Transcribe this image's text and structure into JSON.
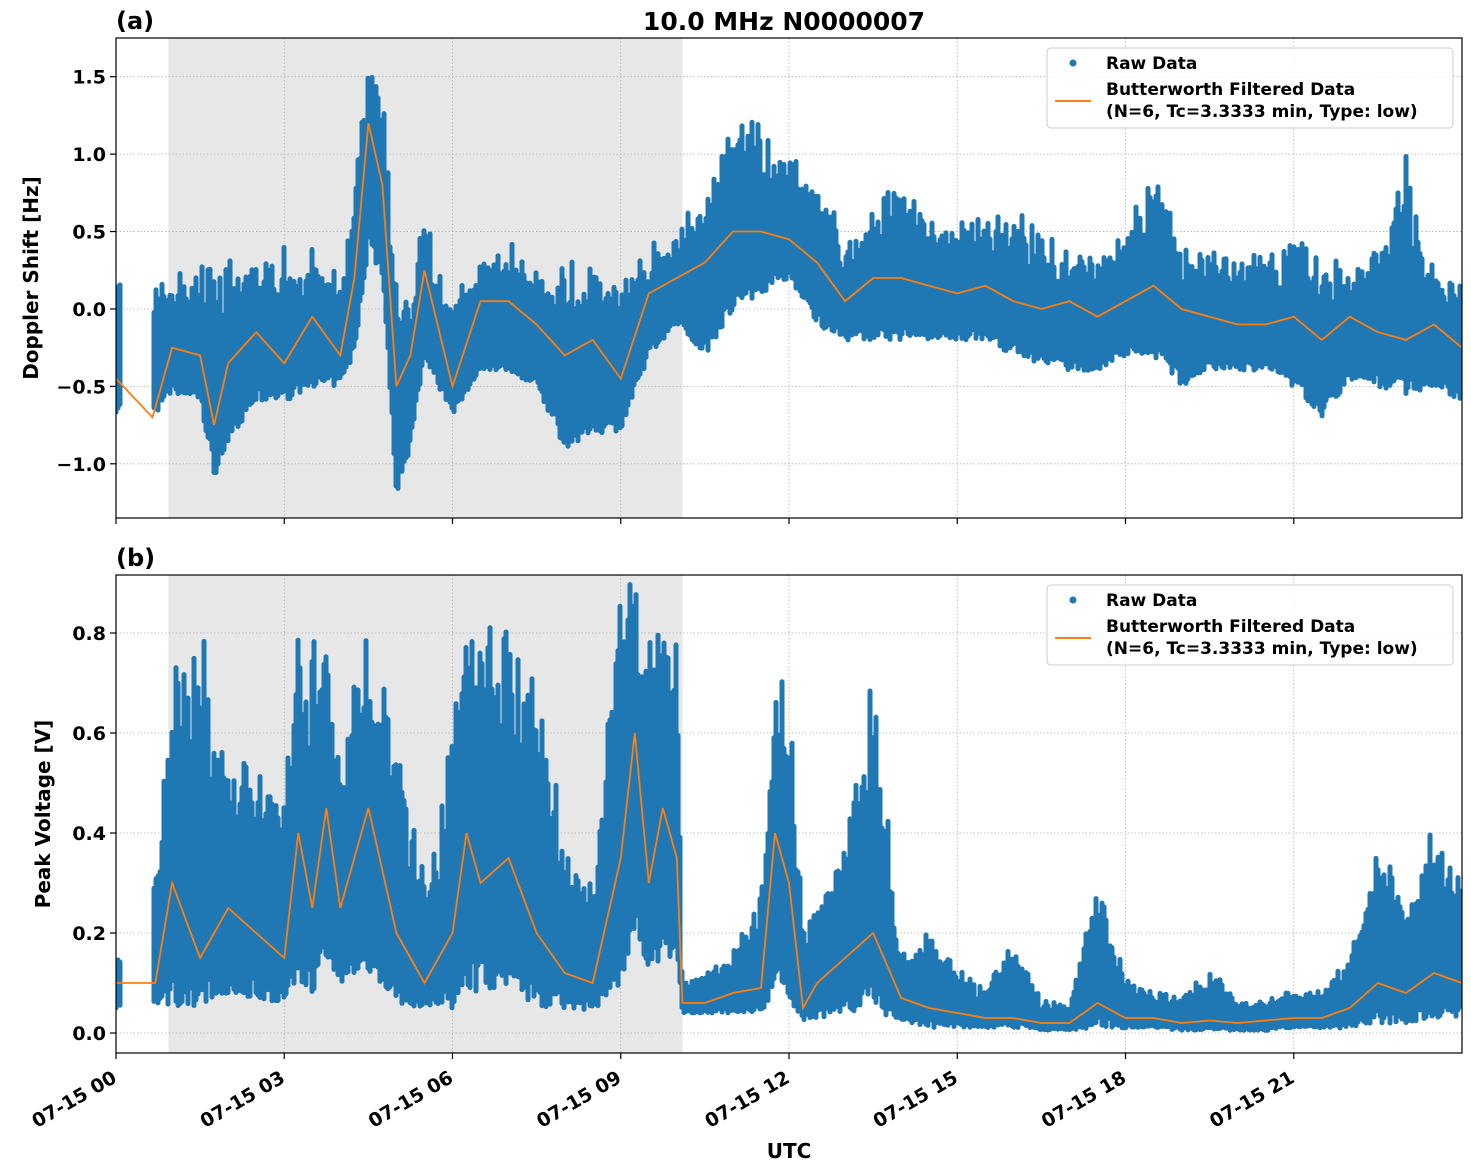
{
  "figure": {
    "title": "10.0 MHz N0000007",
    "xlabel": "UTC",
    "x_tick_labels": [
      "07-15 00",
      "07-15 03",
      "07-15 06",
      "07-15 09",
      "07-15 12",
      "07-15 15",
      "07-15 18",
      "07-15 21"
    ],
    "legend": {
      "raw": "Raw Data",
      "filtered_line1": "Butterworth Filtered Data",
      "filtered_line2": "(N=6, Tc=3.3333 min, Type: low)"
    }
  },
  "colors": {
    "raw": "#1f77b4",
    "filtered": "#ff7f0e",
    "shade": "#e7e7e7",
    "grid": "#b0b0b0"
  },
  "chart_data": [
    {
      "type": "scatter+line",
      "panel_label": "(a)",
      "ylabel": "Doppler Shift [Hz]",
      "xlim": [
        "07-15 00:00",
        "07-16 00:00"
      ],
      "ylim": [
        -1.35,
        1.75
      ],
      "y_ticks": [
        1.5,
        1.0,
        0.5,
        0.0,
        -0.5,
        -1.0
      ],
      "y_tick_labels": [
        "1.5",
        "1.0",
        "0.5",
        "0.0",
        "−0.5",
        "−1.0"
      ],
      "grid": true,
      "legend_position": "top-right",
      "shaded_span": [
        "07-15 00:56",
        "07-15 10:06"
      ],
      "raw_gap": [
        "07-15 00:06",
        "07-15 00:39"
      ],
      "columns": [
        "time",
        "filtered",
        "raw_min",
        "raw_max"
      ],
      "points": [
        [
          "07-15 00:00",
          -0.45,
          -0.7,
          0.45
        ],
        [
          "07-15 00:39",
          -0.7,
          -0.7,
          0.1
        ],
        [
          "07-15 01:00",
          -0.25,
          -0.55,
          0.15
        ],
        [
          "07-15 01:30",
          -0.3,
          -0.6,
          0.2
        ],
        [
          "07-15 01:45",
          -0.75,
          -1.1,
          0.3
        ],
        [
          "07-15 02:00",
          -0.35,
          -0.85,
          0.25
        ],
        [
          "07-15 02:30",
          -0.15,
          -0.6,
          0.3
        ],
        [
          "07-15 03:00",
          -0.35,
          -0.6,
          0.3
        ],
        [
          "07-15 03:30",
          -0.05,
          -0.5,
          0.3
        ],
        [
          "07-15 04:00",
          -0.3,
          -0.5,
          0.2
        ],
        [
          "07-15 04:15",
          0.2,
          -0.3,
          0.6
        ],
        [
          "07-15 04:30",
          1.2,
          0.4,
          1.6
        ],
        [
          "07-15 04:45",
          0.8,
          0.2,
          1.3
        ],
        [
          "07-15 05:00",
          -0.5,
          -1.2,
          0.1
        ],
        [
          "07-15 05:15",
          -0.3,
          -0.9,
          0.05
        ],
        [
          "07-15 05:30",
          0.25,
          -0.3,
          0.6
        ],
        [
          "07-15 06:00",
          -0.5,
          -0.7,
          0.0
        ],
        [
          "07-15 06:30",
          0.05,
          -0.4,
          0.3
        ],
        [
          "07-15 07:00",
          0.05,
          -0.4,
          0.35
        ],
        [
          "07-15 07:30",
          -0.1,
          -0.5,
          0.2
        ],
        [
          "07-15 08:00",
          -0.3,
          -0.9,
          0.2
        ],
        [
          "07-15 08:30",
          -0.2,
          -0.8,
          0.2
        ],
        [
          "07-15 09:00",
          -0.45,
          -0.8,
          0.1
        ],
        [
          "07-15 09:30",
          0.1,
          -0.3,
          0.35
        ],
        [
          "07-15 10:00",
          0.2,
          -0.1,
          0.45
        ],
        [
          "07-15 10:30",
          0.3,
          -0.3,
          0.7
        ],
        [
          "07-15 11:00",
          0.5,
          0.0,
          1.2
        ],
        [
          "07-15 11:30",
          0.5,
          0.1,
          1.1
        ],
        [
          "07-15 12:00",
          0.45,
          0.2,
          0.9
        ],
        [
          "07-15 12:30",
          0.3,
          -0.1,
          0.8
        ],
        [
          "07-15 13:00",
          0.05,
          -0.2,
          0.4
        ],
        [
          "07-15 13:30",
          0.2,
          -0.2,
          0.6
        ],
        [
          "07-15 14:00",
          0.2,
          -0.2,
          0.8
        ],
        [
          "07-15 14:30",
          0.15,
          -0.2,
          0.5
        ],
        [
          "07-15 15:00",
          0.1,
          -0.2,
          0.55
        ],
        [
          "07-15 15:30",
          0.15,
          -0.2,
          0.5
        ],
        [
          "07-15 16:00",
          0.05,
          -0.3,
          0.6
        ],
        [
          "07-15 16:30",
          0.0,
          -0.35,
          0.4
        ],
        [
          "07-15 17:00",
          0.05,
          -0.4,
          0.35
        ],
        [
          "07-15 17:30",
          -0.05,
          -0.4,
          0.3
        ],
        [
          "07-15 18:00",
          0.05,
          -0.3,
          0.5
        ],
        [
          "07-15 18:30",
          0.15,
          -0.3,
          0.8
        ],
        [
          "07-15 19:00",
          0.0,
          -0.5,
          0.4
        ],
        [
          "07-15 19:30",
          -0.05,
          -0.4,
          0.35
        ],
        [
          "07-15 20:00",
          -0.1,
          -0.4,
          0.3
        ],
        [
          "07-15 20:30",
          -0.1,
          -0.4,
          0.3
        ],
        [
          "07-15 21:00",
          -0.05,
          -0.5,
          0.35
        ],
        [
          "07-15 21:30",
          -0.2,
          -0.7,
          0.3
        ],
        [
          "07-15 22:00",
          -0.05,
          -0.45,
          0.2
        ],
        [
          "07-15 22:30",
          -0.15,
          -0.5,
          0.4
        ],
        [
          "07-15 23:00",
          -0.2,
          -0.55,
          0.9
        ],
        [
          "07-15 23:30",
          -0.1,
          -0.5,
          0.2
        ],
        [
          "07-16 00:00",
          -0.25,
          -0.6,
          0.1
        ]
      ]
    },
    {
      "type": "scatter+line",
      "panel_label": "(b)",
      "ylabel": "Peak Voltage [V]",
      "xlim": [
        "07-15 00:00",
        "07-16 00:00"
      ],
      "ylim": [
        -0.04,
        0.916
      ],
      "y_ticks": [
        0.0,
        0.2,
        0.4,
        0.6,
        0.8
      ],
      "y_tick_labels": [
        "0.0",
        "0.2",
        "0.4",
        "0.6",
        "0.8"
      ],
      "grid": true,
      "legend_position": "top-right",
      "shaded_span": [
        "07-15 00:56",
        "07-15 10:06"
      ],
      "raw_gap": [
        "07-15 00:06",
        "07-15 00:39"
      ],
      "columns": [
        "time",
        "filtered",
        "raw_min",
        "raw_max"
      ],
      "points": [
        [
          "07-15 00:00",
          0.1,
          0.05,
          0.14
        ],
        [
          "07-15 00:42",
          0.1,
          0.06,
          0.3
        ],
        [
          "07-15 01:00",
          0.3,
          0.05,
          0.68
        ],
        [
          "07-15 01:30",
          0.15,
          0.05,
          0.75
        ],
        [
          "07-15 02:00",
          0.25,
          0.08,
          0.5
        ],
        [
          "07-15 02:30",
          0.2,
          0.07,
          0.55
        ],
        [
          "07-15 03:00",
          0.15,
          0.06,
          0.45
        ],
        [
          "07-15 03:15",
          0.4,
          0.1,
          0.78
        ],
        [
          "07-15 03:30",
          0.25,
          0.08,
          0.7
        ],
        [
          "07-15 03:45",
          0.45,
          0.15,
          0.83
        ],
        [
          "07-15 04:00",
          0.25,
          0.1,
          0.5
        ],
        [
          "07-15 04:30",
          0.45,
          0.12,
          0.8
        ],
        [
          "07-15 05:00",
          0.2,
          0.06,
          0.55
        ],
        [
          "07-15 05:30",
          0.1,
          0.05,
          0.3
        ],
        [
          "07-15 06:00",
          0.2,
          0.05,
          0.55
        ],
        [
          "07-15 06:15",
          0.4,
          0.08,
          0.78
        ],
        [
          "07-15 06:30",
          0.3,
          0.08,
          0.8
        ],
        [
          "07-15 07:00",
          0.35,
          0.08,
          0.75
        ],
        [
          "07-15 07:30",
          0.2,
          0.05,
          0.7
        ],
        [
          "07-15 08:00",
          0.12,
          0.05,
          0.35
        ],
        [
          "07-15 08:30",
          0.1,
          0.04,
          0.3
        ],
        [
          "07-15 09:00",
          0.35,
          0.1,
          0.85
        ],
        [
          "07-15 09:15",
          0.6,
          0.2,
          0.87
        ],
        [
          "07-15 09:30",
          0.3,
          0.12,
          0.75
        ],
        [
          "07-15 09:45",
          0.45,
          0.15,
          0.85
        ],
        [
          "07-15 10:00",
          0.35,
          0.15,
          0.8
        ],
        [
          "07-15 10:06",
          0.06,
          0.04,
          0.1
        ],
        [
          "07-15 10:30",
          0.06,
          0.04,
          0.12
        ],
        [
          "07-15 11:00",
          0.08,
          0.04,
          0.15
        ],
        [
          "07-15 11:30",
          0.09,
          0.04,
          0.25
        ],
        [
          "07-15 11:45",
          0.4,
          0.08,
          0.7
        ],
        [
          "07-15 12:00",
          0.3,
          0.06,
          0.65
        ],
        [
          "07-15 12:15",
          0.05,
          0.02,
          0.2
        ],
        [
          "07-15 12:30",
          0.1,
          0.03,
          0.25
        ],
        [
          "07-15 13:00",
          0.15,
          0.04,
          0.35
        ],
        [
          "07-15 13:30",
          0.2,
          0.05,
          0.7
        ],
        [
          "07-15 14:00",
          0.07,
          0.02,
          0.15
        ],
        [
          "07-15 14:30",
          0.05,
          0.01,
          0.2
        ],
        [
          "07-15 15:00",
          0.04,
          0.01,
          0.12
        ],
        [
          "07-15 15:30",
          0.03,
          0.01,
          0.08
        ],
        [
          "07-15 16:00",
          0.03,
          0.01,
          0.18
        ],
        [
          "07-15 16:30",
          0.02,
          0.005,
          0.06
        ],
        [
          "07-15 17:00",
          0.02,
          0.005,
          0.05
        ],
        [
          "07-15 17:30",
          0.06,
          0.01,
          0.3
        ],
        [
          "07-15 18:00",
          0.03,
          0.01,
          0.1
        ],
        [
          "07-15 18:30",
          0.03,
          0.01,
          0.08
        ],
        [
          "07-15 19:00",
          0.02,
          0.005,
          0.07
        ],
        [
          "07-15 19:30",
          0.025,
          0.005,
          0.12
        ],
        [
          "07-15 20:00",
          0.02,
          0.005,
          0.06
        ],
        [
          "07-15 20:30",
          0.025,
          0.005,
          0.06
        ],
        [
          "07-15 21:00",
          0.03,
          0.01,
          0.08
        ],
        [
          "07-15 21:30",
          0.03,
          0.01,
          0.08
        ],
        [
          "07-15 22:00",
          0.05,
          0.01,
          0.15
        ],
        [
          "07-15 22:30",
          0.1,
          0.02,
          0.35
        ],
        [
          "07-15 23:00",
          0.08,
          0.02,
          0.25
        ],
        [
          "07-15 23:30",
          0.12,
          0.03,
          0.38
        ],
        [
          "07-16 00:00",
          0.1,
          0.03,
          0.3
        ]
      ]
    }
  ]
}
